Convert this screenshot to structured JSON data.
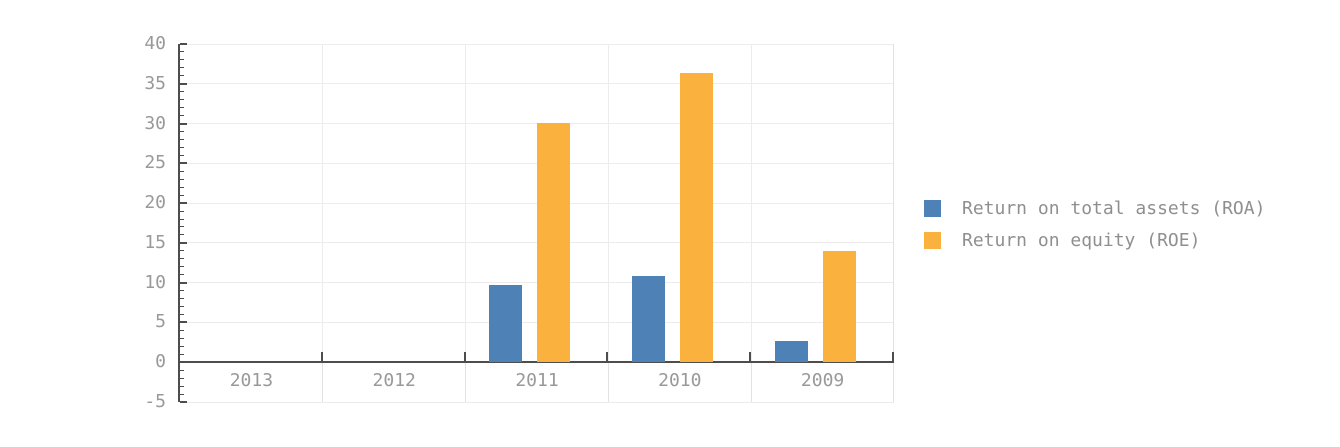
{
  "chart_data": {
    "type": "bar",
    "title": "",
    "xlabel": "",
    "ylabel": "",
    "categories": [
      "2013",
      "2012",
      "2011",
      "2010",
      "2009"
    ],
    "series": [
      {
        "name": "Return on total assets (ROA)",
        "short": "roa",
        "color": "#4e82b6",
        "values": [
          0,
          0,
          9.7,
          10.8,
          2.7
        ]
      },
      {
        "name": "Return on equity (ROE)",
        "short": "roe",
        "color": "#fbb13e",
        "values": [
          0,
          0,
          30.1,
          36.4,
          14.0
        ]
      }
    ],
    "ylim": [
      -5,
      40
    ],
    "y_tick_labels": [
      "40",
      "35",
      "30",
      "25",
      "20",
      "15",
      "10",
      "5",
      "0",
      "-5"
    ],
    "y_major_step": 5,
    "y_minor_step": 1,
    "grid": true,
    "legend_position": "right-middle"
  },
  "colors": {
    "axis": "#4d4d4d",
    "grid": "#ececec",
    "plot_border": "#e2e2e2",
    "tick_label": "#999999",
    "legend_text": "#8f8f8f",
    "background": "#ffffff"
  }
}
